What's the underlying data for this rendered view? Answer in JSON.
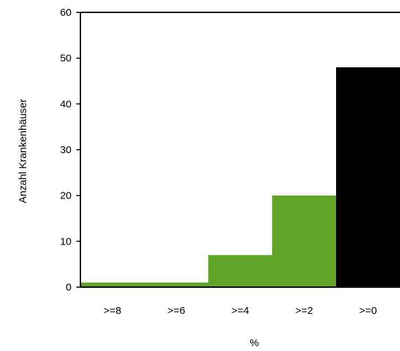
{
  "chart_data": {
    "type": "bar",
    "categories": [
      ">=8",
      ">=6",
      ">=4",
      ">=2",
      ">=0"
    ],
    "values": [
      1,
      1,
      7,
      20,
      48
    ],
    "bar_colors": [
      "#5fa327",
      "#5fa327",
      "#5fa327",
      "#5fa327",
      "#000000"
    ],
    "xlabel": "%",
    "ylabel": "Anzahl Krankenhäuser",
    "ylim": [
      0,
      60
    ],
    "yticks": [
      0,
      10,
      20,
      30,
      40,
      50,
      60
    ],
    "grid": false
  }
}
